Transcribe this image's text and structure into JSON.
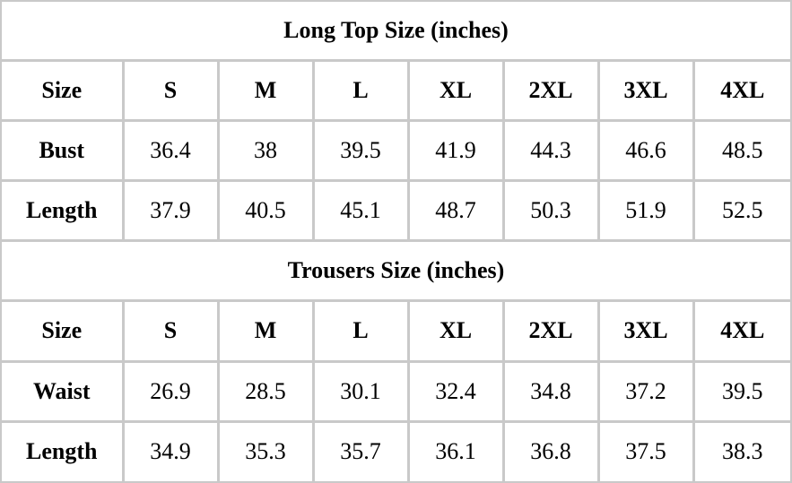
{
  "tables": [
    {
      "title": "Long Top Size (inches)",
      "header": [
        "Size",
        "S",
        "M",
        "L",
        "XL",
        "2XL",
        "3XL",
        "4XL"
      ],
      "rows": [
        [
          "Bust",
          36.4,
          38,
          39.5,
          41.9,
          44.3,
          46.6,
          48.5
        ],
        [
          "Length",
          37.9,
          40.5,
          45.1,
          48.7,
          50.3,
          51.9,
          52.5
        ]
      ]
    },
    {
      "title": "Trousers Size (inches)",
      "header": [
        "Size",
        "S",
        "M",
        "L",
        "XL",
        "2XL",
        "3XL",
        "4XL"
      ],
      "rows": [
        [
          "Waist",
          26.9,
          28.5,
          30.1,
          32.4,
          34.8,
          37.2,
          39.5
        ],
        [
          "Length",
          34.9,
          35.3,
          35.7,
          36.1,
          36.8,
          37.5,
          38.3
        ]
      ]
    }
  ]
}
